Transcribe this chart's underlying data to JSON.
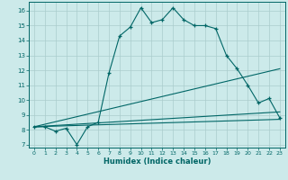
{
  "xlabel": "Humidex (Indice chaleur)",
  "xlim": [
    -0.5,
    23.5
  ],
  "ylim": [
    6.8,
    16.6
  ],
  "xticks": [
    0,
    1,
    2,
    3,
    4,
    5,
    6,
    7,
    8,
    9,
    10,
    11,
    12,
    13,
    14,
    15,
    16,
    17,
    18,
    19,
    20,
    21,
    22,
    23
  ],
  "yticks": [
    7,
    8,
    9,
    10,
    11,
    12,
    13,
    14,
    15,
    16
  ],
  "bg_color": "#cceaea",
  "grid_color": "#aacccc",
  "line_color": "#006666",
  "line1_x": [
    0,
    1,
    2,
    3,
    4,
    5,
    6,
    7,
    8,
    9,
    10,
    11,
    12,
    13,
    14,
    15,
    16,
    17,
    18,
    19,
    20,
    21,
    22,
    23
  ],
  "line1_y": [
    8.2,
    8.2,
    7.9,
    8.1,
    7.0,
    8.2,
    8.5,
    11.8,
    14.3,
    14.9,
    16.2,
    15.2,
    15.4,
    16.2,
    15.4,
    15.0,
    15.0,
    14.8,
    13.0,
    12.1,
    11.0,
    9.8,
    10.1,
    8.8
  ],
  "line2_x": [
    0,
    23
  ],
  "line2_y": [
    8.2,
    12.1
  ],
  "line3_x": [
    0,
    23
  ],
  "line3_y": [
    8.2,
    9.2
  ],
  "line4_x": [
    0,
    23
  ],
  "line4_y": [
    8.2,
    8.7
  ]
}
